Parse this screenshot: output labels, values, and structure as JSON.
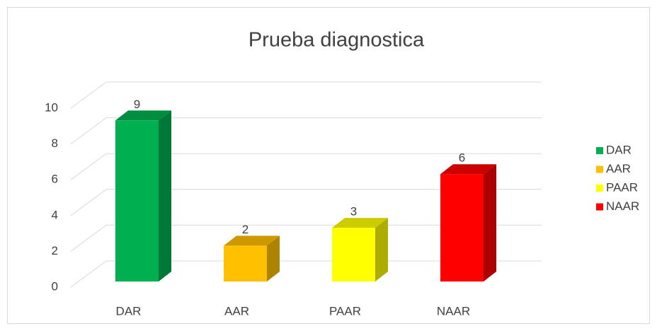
{
  "chart_data": {
    "type": "bar3d",
    "title": "Prueba diagnostica",
    "categories": [
      "DAR",
      "AAR",
      "PAAR",
      "NAAR"
    ],
    "values": [
      9,
      2,
      3,
      6
    ],
    "colors": [
      "#00b050",
      "#ffc000",
      "#ffff00",
      "#ff0000"
    ],
    "ylim": [
      0,
      10
    ],
    "yticks": [
      0,
      2,
      4,
      6,
      8,
      10
    ],
    "grid": true,
    "legend": "right"
  }
}
